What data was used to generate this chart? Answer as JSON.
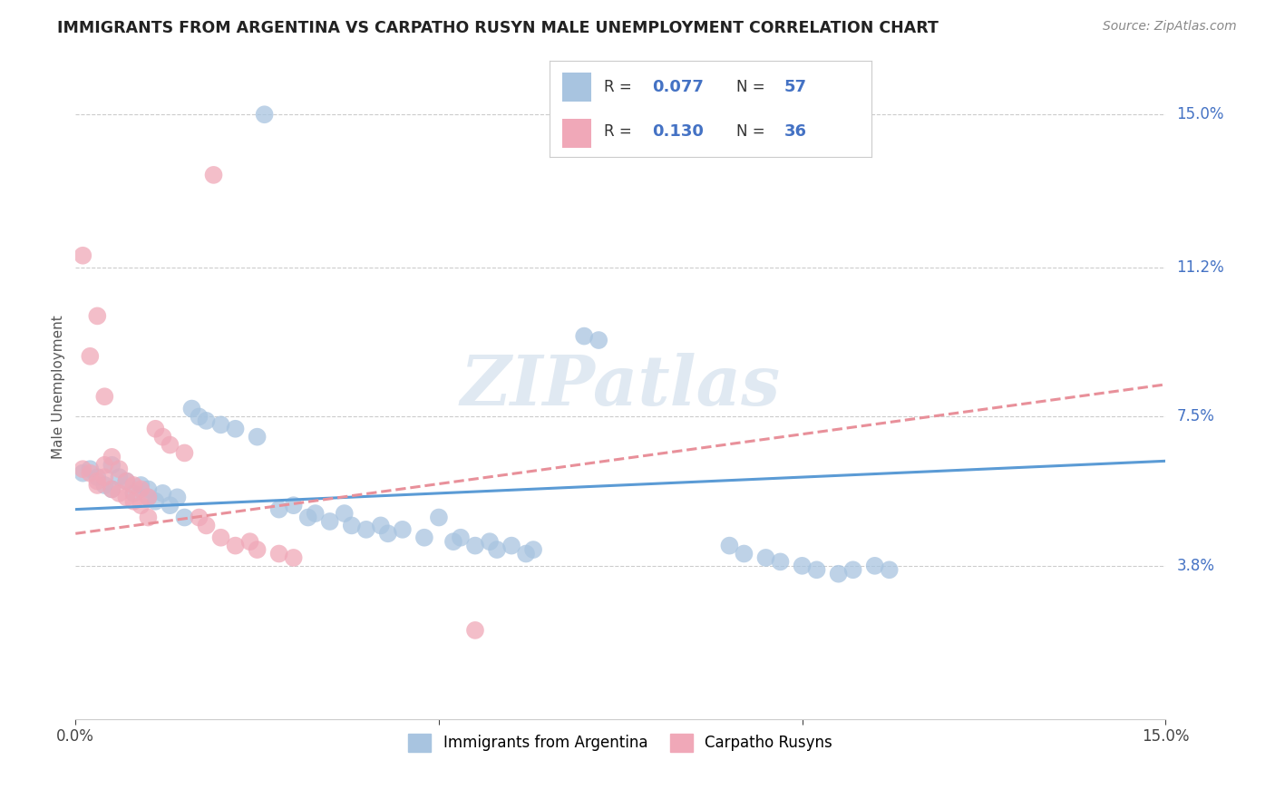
{
  "title": "IMMIGRANTS FROM ARGENTINA VS CARPATHO RUSYN MALE UNEMPLOYMENT CORRELATION CHART",
  "source": "Source: ZipAtlas.com",
  "ylabel": "Male Unemployment",
  "ytick_labels": [
    "15.0%",
    "11.2%",
    "7.5%",
    "3.8%"
  ],
  "ytick_values": [
    0.15,
    0.112,
    0.075,
    0.038
  ],
  "xlim": [
    0.0,
    0.15
  ],
  "ylim": [
    0.0,
    0.165
  ],
  "color_blue": "#a8c4e0",
  "color_pink": "#f0a8b8",
  "color_blue_text": "#4472c4",
  "color_line_blue": "#5b9bd5",
  "color_line_pink": "#e8909a",
  "watermark": "ZIPatlas",
  "blue_line_x0": 0.0,
  "blue_line_x1": 0.15,
  "blue_line_y0": 0.052,
  "blue_line_y1": 0.064,
  "pink_line_x0": 0.0,
  "pink_line_x1": 0.15,
  "pink_line_y0": 0.046,
  "pink_line_y1": 0.083,
  "arg_pts": [
    [
      0.001,
      0.061
    ],
    [
      0.002,
      0.062
    ],
    [
      0.003,
      0.06
    ],
    [
      0.004,
      0.058
    ],
    [
      0.005,
      0.063
    ],
    [
      0.005,
      0.057
    ],
    [
      0.006,
      0.06
    ],
    [
      0.007,
      0.059
    ],
    [
      0.008,
      0.056
    ],
    [
      0.009,
      0.058
    ],
    [
      0.01,
      0.055
    ],
    [
      0.01,
      0.057
    ],
    [
      0.011,
      0.054
    ],
    [
      0.012,
      0.056
    ],
    [
      0.013,
      0.053
    ],
    [
      0.014,
      0.055
    ],
    [
      0.015,
      0.05
    ],
    [
      0.016,
      0.077
    ],
    [
      0.017,
      0.075
    ],
    [
      0.018,
      0.074
    ],
    [
      0.02,
      0.073
    ],
    [
      0.022,
      0.072
    ],
    [
      0.025,
      0.07
    ],
    [
      0.028,
      0.052
    ],
    [
      0.03,
      0.053
    ],
    [
      0.032,
      0.05
    ],
    [
      0.033,
      0.051
    ],
    [
      0.035,
      0.049
    ],
    [
      0.037,
      0.051
    ],
    [
      0.038,
      0.048
    ],
    [
      0.04,
      0.047
    ],
    [
      0.042,
      0.048
    ],
    [
      0.043,
      0.046
    ],
    [
      0.045,
      0.047
    ],
    [
      0.048,
      0.045
    ],
    [
      0.05,
      0.05
    ],
    [
      0.052,
      0.044
    ],
    [
      0.053,
      0.045
    ],
    [
      0.055,
      0.043
    ],
    [
      0.057,
      0.044
    ],
    [
      0.058,
      0.042
    ],
    [
      0.06,
      0.043
    ],
    [
      0.062,
      0.041
    ],
    [
      0.063,
      0.042
    ],
    [
      0.07,
      0.095
    ],
    [
      0.072,
      0.094
    ],
    [
      0.09,
      0.043
    ],
    [
      0.092,
      0.041
    ],
    [
      0.095,
      0.04
    ],
    [
      0.097,
      0.039
    ],
    [
      0.1,
      0.038
    ],
    [
      0.102,
      0.037
    ],
    [
      0.105,
      0.036
    ],
    [
      0.107,
      0.037
    ],
    [
      0.11,
      0.038
    ],
    [
      0.112,
      0.037
    ],
    [
      0.026,
      0.15
    ]
  ],
  "rus_pts": [
    [
      0.001,
      0.062
    ],
    [
      0.002,
      0.061
    ],
    [
      0.003,
      0.059
    ],
    [
      0.003,
      0.058
    ],
    [
      0.004,
      0.063
    ],
    [
      0.004,
      0.06
    ],
    [
      0.005,
      0.065
    ],
    [
      0.005,
      0.057
    ],
    [
      0.006,
      0.062
    ],
    [
      0.006,
      0.056
    ],
    [
      0.007,
      0.059
    ],
    [
      0.007,
      0.055
    ],
    [
      0.008,
      0.058
    ],
    [
      0.008,
      0.054
    ],
    [
      0.009,
      0.057
    ],
    [
      0.009,
      0.053
    ],
    [
      0.01,
      0.05
    ],
    [
      0.01,
      0.055
    ],
    [
      0.002,
      0.09
    ],
    [
      0.004,
      0.08
    ],
    [
      0.011,
      0.072
    ],
    [
      0.012,
      0.07
    ],
    [
      0.013,
      0.068
    ],
    [
      0.015,
      0.066
    ],
    [
      0.017,
      0.05
    ],
    [
      0.018,
      0.048
    ],
    [
      0.02,
      0.045
    ],
    [
      0.022,
      0.043
    ],
    [
      0.024,
      0.044
    ],
    [
      0.025,
      0.042
    ],
    [
      0.028,
      0.041
    ],
    [
      0.03,
      0.04
    ],
    [
      0.001,
      0.115
    ],
    [
      0.055,
      0.022
    ],
    [
      0.019,
      0.135
    ],
    [
      0.003,
      0.1
    ]
  ]
}
